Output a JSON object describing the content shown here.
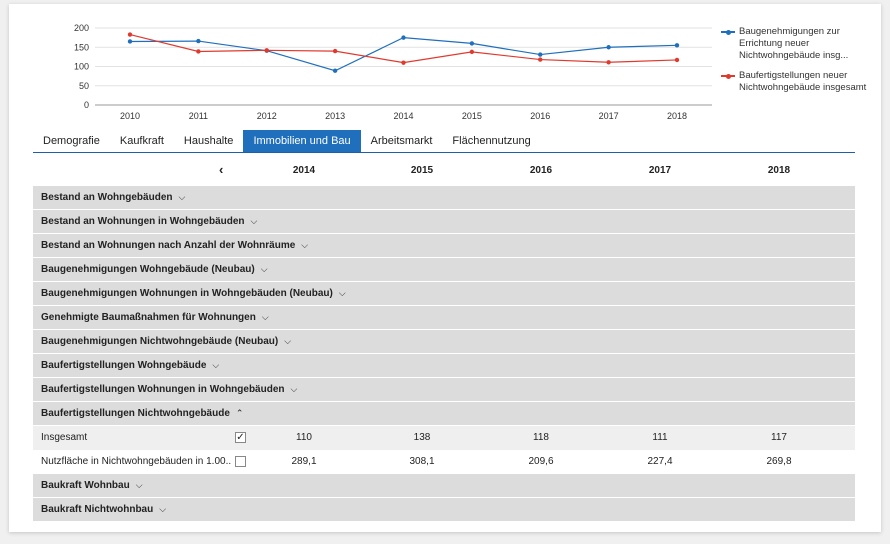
{
  "chart_data": {
    "type": "line",
    "categories": [
      "2010",
      "2011",
      "2012",
      "2013",
      "2014",
      "2015",
      "2016",
      "2017",
      "2018"
    ],
    "ylim": [
      0,
      200
    ],
    "yticks": [
      0,
      50,
      100,
      150,
      200
    ],
    "grid": true,
    "legend_position": "right",
    "series": [
      {
        "name": "Baugenehmigungen zur Errichtung neuer Nichtwohngebäude insg...",
        "color": "#1f6fbd",
        "values": [
          165,
          166,
          141,
          89,
          175,
          160,
          131,
          150,
          155
        ]
      },
      {
        "name": "Baufertigstellungen neuer Nichtwohngebäude insgesamt",
        "color": "#e03a2f",
        "values": [
          183,
          139,
          142,
          140,
          110,
          138,
          118,
          111,
          117
        ]
      }
    ]
  },
  "tabs": [
    {
      "label": "Demografie",
      "active": false
    },
    {
      "label": "Kaufkraft",
      "active": false
    },
    {
      "label": "Haushalte",
      "active": false
    },
    {
      "label": "Immobilien und Bau",
      "active": true
    },
    {
      "label": "Arbeitsmarkt",
      "active": false
    },
    {
      "label": "Flächennutzung",
      "active": false
    }
  ],
  "table": {
    "nav_prev": "‹",
    "years": [
      "2014",
      "2015",
      "2016",
      "2017",
      "2018"
    ],
    "sections_before": [
      "Bestand an Wohngebäuden",
      "Bestand an Wohnungen in Wohngebäuden",
      "Bestand an Wohnungen nach Anzahl der Wohnräume",
      "Baugenehmigungen Wohngebäude (Neubau)",
      "Baugenehmigungen Wohnungen in Wohngebäuden (Neubau)",
      "Genehmigte Baumaßnahmen für Wohnungen",
      "Baugenehmigungen Nichtwohngebäude (Neubau)",
      "Baufertigstellungen Wohngebäude",
      "Baufertigstellungen Wohnungen in Wohngebäuden"
    ],
    "expanded_section": "Baufertigstellungen Nichtwohngebäude",
    "rows": [
      {
        "label": "Insgesamt",
        "checked": true,
        "values": [
          "110",
          "138",
          "118",
          "111",
          "117"
        ]
      },
      {
        "label": "Nutzfläche in Nichtwohngebäuden in 1.00....",
        "checked": false,
        "values": [
          "289,1",
          "308,1",
          "209,6",
          "227,4",
          "269,8"
        ]
      }
    ],
    "sections_after": [
      "Baukraft Wohnbau",
      "Baukraft Nichtwohnbau"
    ],
    "chevron_down": "⌵",
    "chevron_up": "⌃",
    "check_mark": "✓"
  }
}
